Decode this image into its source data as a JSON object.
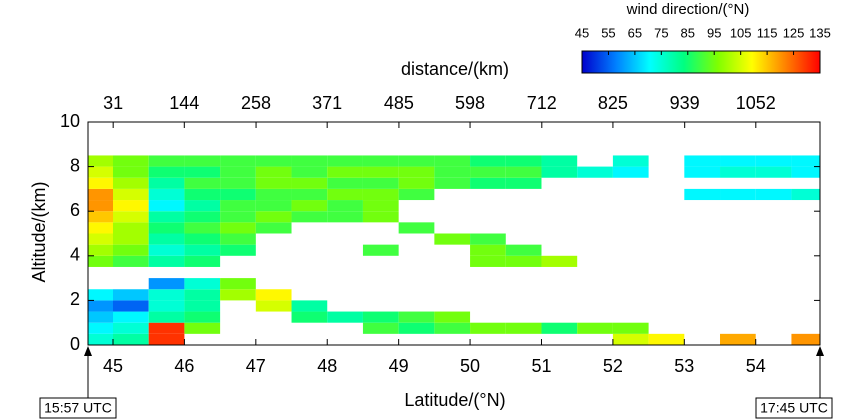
{
  "chart_data": {
    "type": "heatmap",
    "x_label": "Latitude/(°N)",
    "y_label": "Altitude/(km)",
    "x2_label": "distance/(km)",
    "xlim": [
      44.65,
      54.9
    ],
    "xticks": [
      45,
      46,
      47,
      48,
      49,
      50,
      51,
      52,
      53,
      54
    ],
    "ylim": [
      0,
      10
    ],
    "yticks": [
      0,
      2,
      4,
      6,
      8,
      10
    ],
    "x2lim": [
      -9,
      1154
    ],
    "x2ticks": [
      31,
      144,
      258,
      371,
      485,
      598,
      712,
      825,
      939,
      1052
    ],
    "colorbar_label": "wind direction/(°N)",
    "clim": [
      45,
      135
    ],
    "cticks": [
      45,
      55,
      65,
      75,
      85,
      95,
      105,
      115,
      125,
      135
    ],
    "colormap": [
      "#0000cc",
      "#0080ff",
      "#00ffff",
      "#00ff80",
      "#80ff00",
      "#ffff00",
      "#ff8000",
      "#ff0000"
    ],
    "annotations": [
      "15:57 UTC",
      "17:45 UTC"
    ],
    "x": [
      44.75,
      45.25,
      45.75,
      46.25,
      46.75,
      47.25,
      47.75,
      48.25,
      48.75,
      49.25,
      49.75,
      50.25,
      50.75,
      51.25,
      51.75,
      52.25,
      52.75,
      53.25,
      53.75,
      54.25,
      54.75
    ],
    "y": [
      0.25,
      0.75,
      1.25,
      1.75,
      2.25,
      2.75,
      3.25,
      3.75,
      4.25,
      4.75,
      5.25,
      5.75,
      6.25,
      6.75,
      7.25,
      7.75,
      8.25
    ],
    "z": [
      [
        75,
        80,
        130,
        null,
        null,
        null,
        null,
        null,
        null,
        null,
        null,
        null,
        null,
        null,
        null,
        105,
        110,
        null,
        118,
        null,
        120
      ],
      [
        70,
        75,
        130,
        95,
        null,
        null,
        null,
        null,
        90,
        85,
        90,
        95,
        95,
        85,
        95,
        95,
        null,
        null,
        null,
        null,
        null
      ],
      [
        65,
        70,
        80,
        85,
        null,
        null,
        85,
        80,
        85,
        90,
        95,
        null,
        null,
        null,
        null,
        null,
        null,
        null,
        null,
        null,
        null
      ],
      [
        60,
        55,
        75,
        80,
        null,
        105,
        80,
        null,
        null,
        null,
        null,
        null,
        null,
        null,
        null,
        null,
        null,
        null,
        null,
        null,
        null
      ],
      [
        70,
        65,
        75,
        80,
        100,
        110,
        null,
        null,
        null,
        null,
        null,
        null,
        null,
        null,
        null,
        null,
        null,
        null,
        null,
        null,
        null
      ],
      [
        null,
        null,
        60,
        75,
        95,
        null,
        null,
        null,
        null,
        null,
        null,
        null,
        null,
        null,
        null,
        null,
        null,
        null,
        null,
        null,
        null
      ],
      [
        null,
        null,
        null,
        null,
        null,
        null,
        null,
        null,
        null,
        null,
        null,
        null,
        null,
        null,
        null,
        null,
        null,
        null,
        null,
        null,
        null
      ],
      [
        95,
        90,
        80,
        85,
        null,
        null,
        null,
        null,
        null,
        null,
        null,
        95,
        95,
        100,
        null,
        null,
        null,
        null,
        null,
        null,
        null
      ],
      [
        100,
        95,
        75,
        80,
        85,
        null,
        null,
        null,
        90,
        null,
        null,
        95,
        90,
        null,
        null,
        null,
        null,
        null,
        null,
        null,
        null
      ],
      [
        105,
        100,
        80,
        85,
        90,
        null,
        null,
        null,
        null,
        null,
        95,
        90,
        null,
        null,
        null,
        null,
        null,
        null,
        null,
        null,
        null
      ],
      [
        110,
        100,
        85,
        90,
        95,
        90,
        null,
        null,
        null,
        90,
        null,
        null,
        null,
        null,
        null,
        null,
        null,
        null,
        null,
        null,
        null
      ],
      [
        115,
        105,
        80,
        85,
        90,
        95,
        90,
        90,
        95,
        null,
        null,
        null,
        null,
        null,
        null,
        null,
        null,
        null,
        null,
        null,
        null
      ],
      [
        120,
        110,
        70,
        80,
        90,
        90,
        95,
        90,
        95,
        null,
        null,
        null,
        null,
        null,
        null,
        null,
        null,
        null,
        null,
        null,
        null
      ],
      [
        120,
        105,
        75,
        85,
        85,
        90,
        90,
        95,
        95,
        90,
        null,
        null,
        null,
        null,
        null,
        null,
        null,
        70,
        70,
        70,
        75
      ],
      [
        110,
        100,
        80,
        90,
        90,
        95,
        95,
        90,
        90,
        95,
        90,
        85,
        85,
        null,
        null,
        null,
        null,
        null,
        null,
        null,
        null
      ],
      [
        105,
        95,
        85,
        85,
        90,
        95,
        90,
        95,
        95,
        95,
        90,
        90,
        90,
        80,
        75,
        70,
        null,
        70,
        75,
        75,
        70
      ],
      [
        100,
        95,
        90,
        90,
        90,
        90,
        90,
        90,
        90,
        90,
        90,
        85,
        85,
        80,
        null,
        75,
        null,
        70,
        70,
        70,
        70
      ]
    ]
  }
}
